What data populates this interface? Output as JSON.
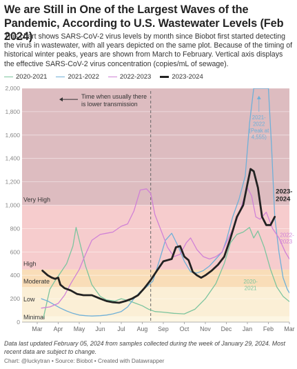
{
  "header": {
    "title": "We are Still in One of the Largest Waves of the Pandemic, According to U.S. Wastewater Levels (Feb 2024)",
    "description": "This chart shows SARS-CoV-2 virus levels by month since Biobot first started detecting the virus in wastewater, with all years depicted on the same plot. Because of the timing of historical winter peaks, years are shown from March to February. Vertical axis displays the effective SARS-CoV-2 virus concentration (copies/mL of sewage)."
  },
  "footer": {
    "note": "Data last updated February 05, 2024 from samples collected during the week of January 29, 2024. Most recent data are subject to change.",
    "credit": "Chart: @luckytran • Source: Biobot • Created with Datawrapper"
  },
  "chart_data": {
    "type": "line",
    "x_labels": [
      "Mar",
      "Apr",
      "May",
      "Jun",
      "Jul",
      "Aug",
      "Sep",
      "Oct",
      "Nov",
      "Dec",
      "Jan",
      "Feb",
      "Mar"
    ],
    "y_ticks": [
      0,
      200,
      400,
      600,
      800,
      "1,000",
      "1,200",
      "1,400",
      "1,600",
      "1,800",
      "2,000"
    ],
    "ylim": [
      0,
      2000
    ],
    "grid": true,
    "legend_position": "top-left",
    "bands": [
      {
        "label": "Minimal",
        "from": 0,
        "to": 50,
        "color": "#fdf6e3"
      },
      {
        "label": "Low",
        "from": 50,
        "to": 300,
        "color": "#fbefd6"
      },
      {
        "label": "Moderate",
        "from": 300,
        "to": 450,
        "color": "#f9ddb8"
      },
      {
        "label": "High",
        "from": 450,
        "to": 1000,
        "color": "#f6cccd"
      },
      {
        "label": "Very High",
        "from": 1000,
        "to": 2000,
        "color": "#ddbcc0"
      }
    ],
    "series": [
      {
        "name": "2020-2021",
        "color": "#7cc49e",
        "width": 1.3,
        "values": [
          [
            0.3,
            40
          ],
          [
            0.6,
            280
          ],
          [
            0.8,
            340
          ],
          [
            1.1,
            420
          ],
          [
            1.4,
            500
          ],
          [
            1.7,
            650
          ],
          [
            1.85,
            810
          ],
          [
            2.0,
            700
          ],
          [
            2.3,
            480
          ],
          [
            2.6,
            320
          ],
          [
            3.0,
            220
          ],
          [
            3.3,
            190
          ],
          [
            3.7,
            180
          ],
          [
            4.0,
            200
          ],
          [
            4.4,
            180
          ],
          [
            4.7,
            160
          ],
          [
            5.0,
            140
          ],
          [
            5.3,
            110
          ],
          [
            5.6,
            90
          ],
          [
            6.0,
            85
          ],
          [
            6.5,
            75
          ],
          [
            7.0,
            70
          ],
          [
            7.5,
            110
          ],
          [
            8.0,
            200
          ],
          [
            8.5,
            330
          ],
          [
            8.9,
            500
          ],
          [
            9.2,
            680
          ],
          [
            9.5,
            750
          ],
          [
            9.8,
            770
          ],
          [
            10.1,
            810
          ],
          [
            10.3,
            720
          ],
          [
            10.5,
            780
          ],
          [
            10.8,
            640
          ],
          [
            11.1,
            450
          ],
          [
            11.4,
            300
          ],
          [
            11.7,
            220
          ],
          [
            12.0,
            175
          ]
        ]
      },
      {
        "name": "2021-2022",
        "color": "#6fb0d8",
        "width": 1.3,
        "values": [
          [
            0.2,
            200
          ],
          [
            0.5,
            180
          ],
          [
            0.8,
            150
          ],
          [
            1.1,
            120
          ],
          [
            1.4,
            95
          ],
          [
            1.7,
            75
          ],
          [
            2.0,
            60
          ],
          [
            2.3,
            55
          ],
          [
            2.6,
            52
          ],
          [
            3.0,
            55
          ],
          [
            3.3,
            60
          ],
          [
            3.6,
            70
          ],
          [
            4.0,
            90
          ],
          [
            4.3,
            130
          ],
          [
            4.6,
            200
          ],
          [
            4.9,
            260
          ],
          [
            5.2,
            300
          ],
          [
            5.5,
            350
          ],
          [
            5.8,
            520
          ],
          [
            6.1,
            700
          ],
          [
            6.4,
            760
          ],
          [
            6.7,
            650
          ],
          [
            7.0,
            520
          ],
          [
            7.3,
            430
          ],
          [
            7.6,
            420
          ],
          [
            7.9,
            440
          ],
          [
            8.2,
            480
          ],
          [
            8.5,
            540
          ],
          [
            8.8,
            600
          ],
          [
            9.0,
            700
          ],
          [
            9.3,
            900
          ],
          [
            9.6,
            1050
          ],
          [
            9.9,
            1250
          ],
          [
            10.1,
            1700
          ],
          [
            10.3,
            2000
          ],
          [
            11.0,
            2000
          ],
          [
            11.15,
            1500
          ],
          [
            11.3,
            900
          ],
          [
            11.5,
            600
          ],
          [
            11.7,
            380
          ],
          [
            11.9,
            280
          ],
          [
            12.0,
            250
          ]
        ]
      },
      {
        "name": "2022-2023",
        "color": "#d081d6",
        "width": 1.3,
        "values": [
          [
            0.2,
            120
          ],
          [
            0.6,
            130
          ],
          [
            1.0,
            160
          ],
          [
            1.3,
            230
          ],
          [
            1.6,
            330
          ],
          [
            2.0,
            450
          ],
          [
            2.3,
            580
          ],
          [
            2.6,
            700
          ],
          [
            3.0,
            750
          ],
          [
            3.3,
            760
          ],
          [
            3.6,
            770
          ],
          [
            4.0,
            820
          ],
          [
            4.3,
            840
          ],
          [
            4.6,
            950
          ],
          [
            4.9,
            1130
          ],
          [
            5.2,
            1140
          ],
          [
            5.4,
            1100
          ],
          [
            5.6,
            920
          ],
          [
            5.9,
            780
          ],
          [
            6.2,
            640
          ],
          [
            6.5,
            560
          ],
          [
            6.8,
            580
          ],
          [
            7.1,
            680
          ],
          [
            7.3,
            720
          ],
          [
            7.6,
            620
          ],
          [
            7.9,
            560
          ],
          [
            8.2,
            540
          ],
          [
            8.5,
            560
          ],
          [
            8.8,
            600
          ],
          [
            9.1,
            720
          ],
          [
            9.4,
            830
          ],
          [
            9.7,
            980
          ],
          [
            10.0,
            1150
          ],
          [
            10.2,
            1080
          ],
          [
            10.4,
            900
          ],
          [
            10.6,
            880
          ],
          [
            10.9,
            940
          ],
          [
            11.2,
            800
          ],
          [
            11.5,
            720
          ],
          [
            11.8,
            600
          ],
          [
            12.0,
            540
          ]
        ]
      },
      {
        "name": "2023-2024",
        "color": "#222222",
        "width": 2.8,
        "values": [
          [
            0.25,
            440
          ],
          [
            0.5,
            400
          ],
          [
            0.7,
            380
          ],
          [
            0.85,
            370
          ],
          [
            1.0,
            380
          ],
          [
            1.1,
            320
          ],
          [
            1.3,
            290
          ],
          [
            1.6,
            270
          ],
          [
            1.9,
            240
          ],
          [
            2.2,
            230
          ],
          [
            2.6,
            230
          ],
          [
            3.0,
            200
          ],
          [
            3.3,
            180
          ],
          [
            3.6,
            170
          ],
          [
            3.9,
            165
          ],
          [
            4.2,
            180
          ],
          [
            4.5,
            200
          ],
          [
            4.8,
            230
          ],
          [
            5.1,
            290
          ],
          [
            5.4,
            360
          ],
          [
            5.7,
            440
          ],
          [
            6.0,
            520
          ],
          [
            6.2,
            530
          ],
          [
            6.4,
            540
          ],
          [
            6.6,
            640
          ],
          [
            6.8,
            650
          ],
          [
            7.0,
            560
          ],
          [
            7.2,
            530
          ],
          [
            7.4,
            430
          ],
          [
            7.6,
            400
          ],
          [
            7.8,
            380
          ],
          [
            8.0,
            400
          ],
          [
            8.3,
            440
          ],
          [
            8.6,
            490
          ],
          [
            8.9,
            560
          ],
          [
            9.2,
            720
          ],
          [
            9.5,
            900
          ],
          [
            9.8,
            1000
          ],
          [
            10.0,
            1180
          ],
          [
            10.15,
            1310
          ],
          [
            10.3,
            1290
          ],
          [
            10.5,
            1150
          ],
          [
            10.7,
            900
          ],
          [
            10.9,
            830
          ],
          [
            11.1,
            830
          ],
          [
            11.3,
            900
          ]
        ]
      }
    ],
    "annotations": {
      "usual_low_transmission": "Time when usually there is lower transmission",
      "peak_2122": [
        "2021-",
        "2022",
        "(Peak at",
        "4,555)"
      ],
      "label_2324": [
        "2023-",
        "2024"
      ],
      "label_2223": [
        "2022-",
        "2023"
      ],
      "label_2021": [
        "2020-",
        "2021"
      ]
    }
  }
}
